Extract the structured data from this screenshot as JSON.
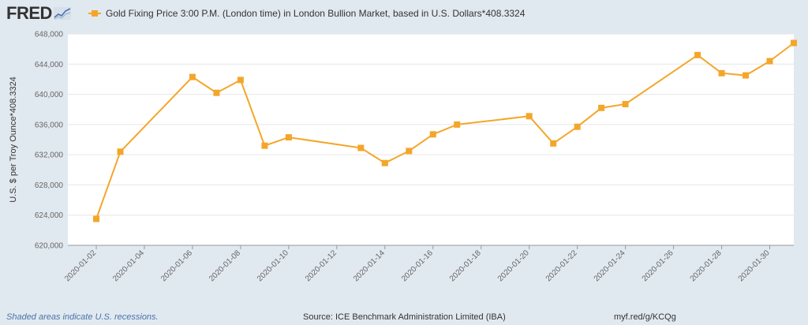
{
  "header": {
    "logo_text": "FRED",
    "legend_label": "Gold Fixing Price 3:00 P.M. (London time) in London Bullion Market, based in U.S. Dollars*408.3324"
  },
  "footer": {
    "recession_note": "Shaded areas indicate U.S. recessions.",
    "source": "Source: ICE Benchmark Administration Limited (IBA)",
    "link": "myf.red/g/KCQg"
  },
  "colors": {
    "series": "#f4a62a",
    "plot_background": "#ffffff",
    "page_background": "#e1e9f0",
    "grid": "#e6e6e6",
    "recession_link": "#4b73a8"
  },
  "chart_data": {
    "type": "line",
    "title": "",
    "xlabel": "",
    "ylabel": "U.S. $ per Troy Ounce*408.3324",
    "ylim": [
      620000,
      648000
    ],
    "xlim": [
      "2020-01-01",
      "2020-01-31"
    ],
    "grid": true,
    "legend_position": "top",
    "yticks": [
      620000,
      624000,
      628000,
      632000,
      636000,
      640000,
      644000,
      648000
    ],
    "ytick_labels": [
      "620,000",
      "624,000",
      "628,000",
      "632,000",
      "636,000",
      "640,000",
      "644,000",
      "648,000"
    ],
    "xticks": [
      "2020-01-02",
      "2020-01-04",
      "2020-01-06",
      "2020-01-08",
      "2020-01-10",
      "2020-01-12",
      "2020-01-14",
      "2020-01-16",
      "2020-01-18",
      "2020-01-20",
      "2020-01-22",
      "2020-01-24",
      "2020-01-26",
      "2020-01-28",
      "2020-01-30"
    ],
    "series": [
      {
        "name": "Gold Fixing Price 3:00 P.M. (London time) in London Bullion Market, based in U.S. Dollars*408.3324",
        "x": [
          "2020-01-02",
          "2020-01-03",
          "2020-01-06",
          "2020-01-07",
          "2020-01-08",
          "2020-01-09",
          "2020-01-10",
          "2020-01-13",
          "2020-01-14",
          "2020-01-15",
          "2020-01-16",
          "2020-01-17",
          "2020-01-20",
          "2020-01-21",
          "2020-01-22",
          "2020-01-23",
          "2020-01-24",
          "2020-01-27",
          "2020-01-28",
          "2020-01-29",
          "2020-01-30",
          "2020-01-31"
        ],
        "values": [
          623500,
          632400,
          642300,
          640200,
          641900,
          633200,
          634300,
          632900,
          630900,
          632500,
          634700,
          636000,
          637100,
          633500,
          635700,
          638200,
          638700,
          645200,
          642800,
          642500,
          644400,
          646800
        ]
      }
    ]
  }
}
